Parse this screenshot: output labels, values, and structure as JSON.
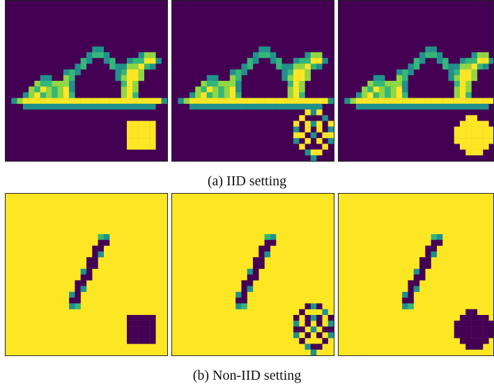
{
  "captions": {
    "a": "(a) IID setting",
    "b": "(b) Non-IID setting"
  },
  "rows": [
    {
      "name": "IID setting",
      "background": "#440154",
      "panels": [
        {
          "image": "sandal",
          "trigger": "square",
          "trigger_color": "#fde725"
        },
        {
          "image": "sandal",
          "trigger": "ring",
          "trigger_color": "#fde725"
        },
        {
          "image": "sandal",
          "trigger": "blob",
          "trigger_color": "#fde725"
        }
      ]
    },
    {
      "name": "Non-IID setting",
      "background": "#fde725",
      "panels": [
        {
          "image": "digit-one",
          "trigger": "square",
          "trigger_color": "#440154"
        },
        {
          "image": "digit-one",
          "trigger": "ring",
          "trigger_color": "#440154"
        },
        {
          "image": "digit-one",
          "trigger": "blob",
          "trigger_color": "#440154"
        }
      ]
    }
  ],
  "colors": {
    "dark": "#440154",
    "teal": "#21918c",
    "green": "#35b779",
    "lime": "#90d743",
    "yellow": "#fde725"
  }
}
